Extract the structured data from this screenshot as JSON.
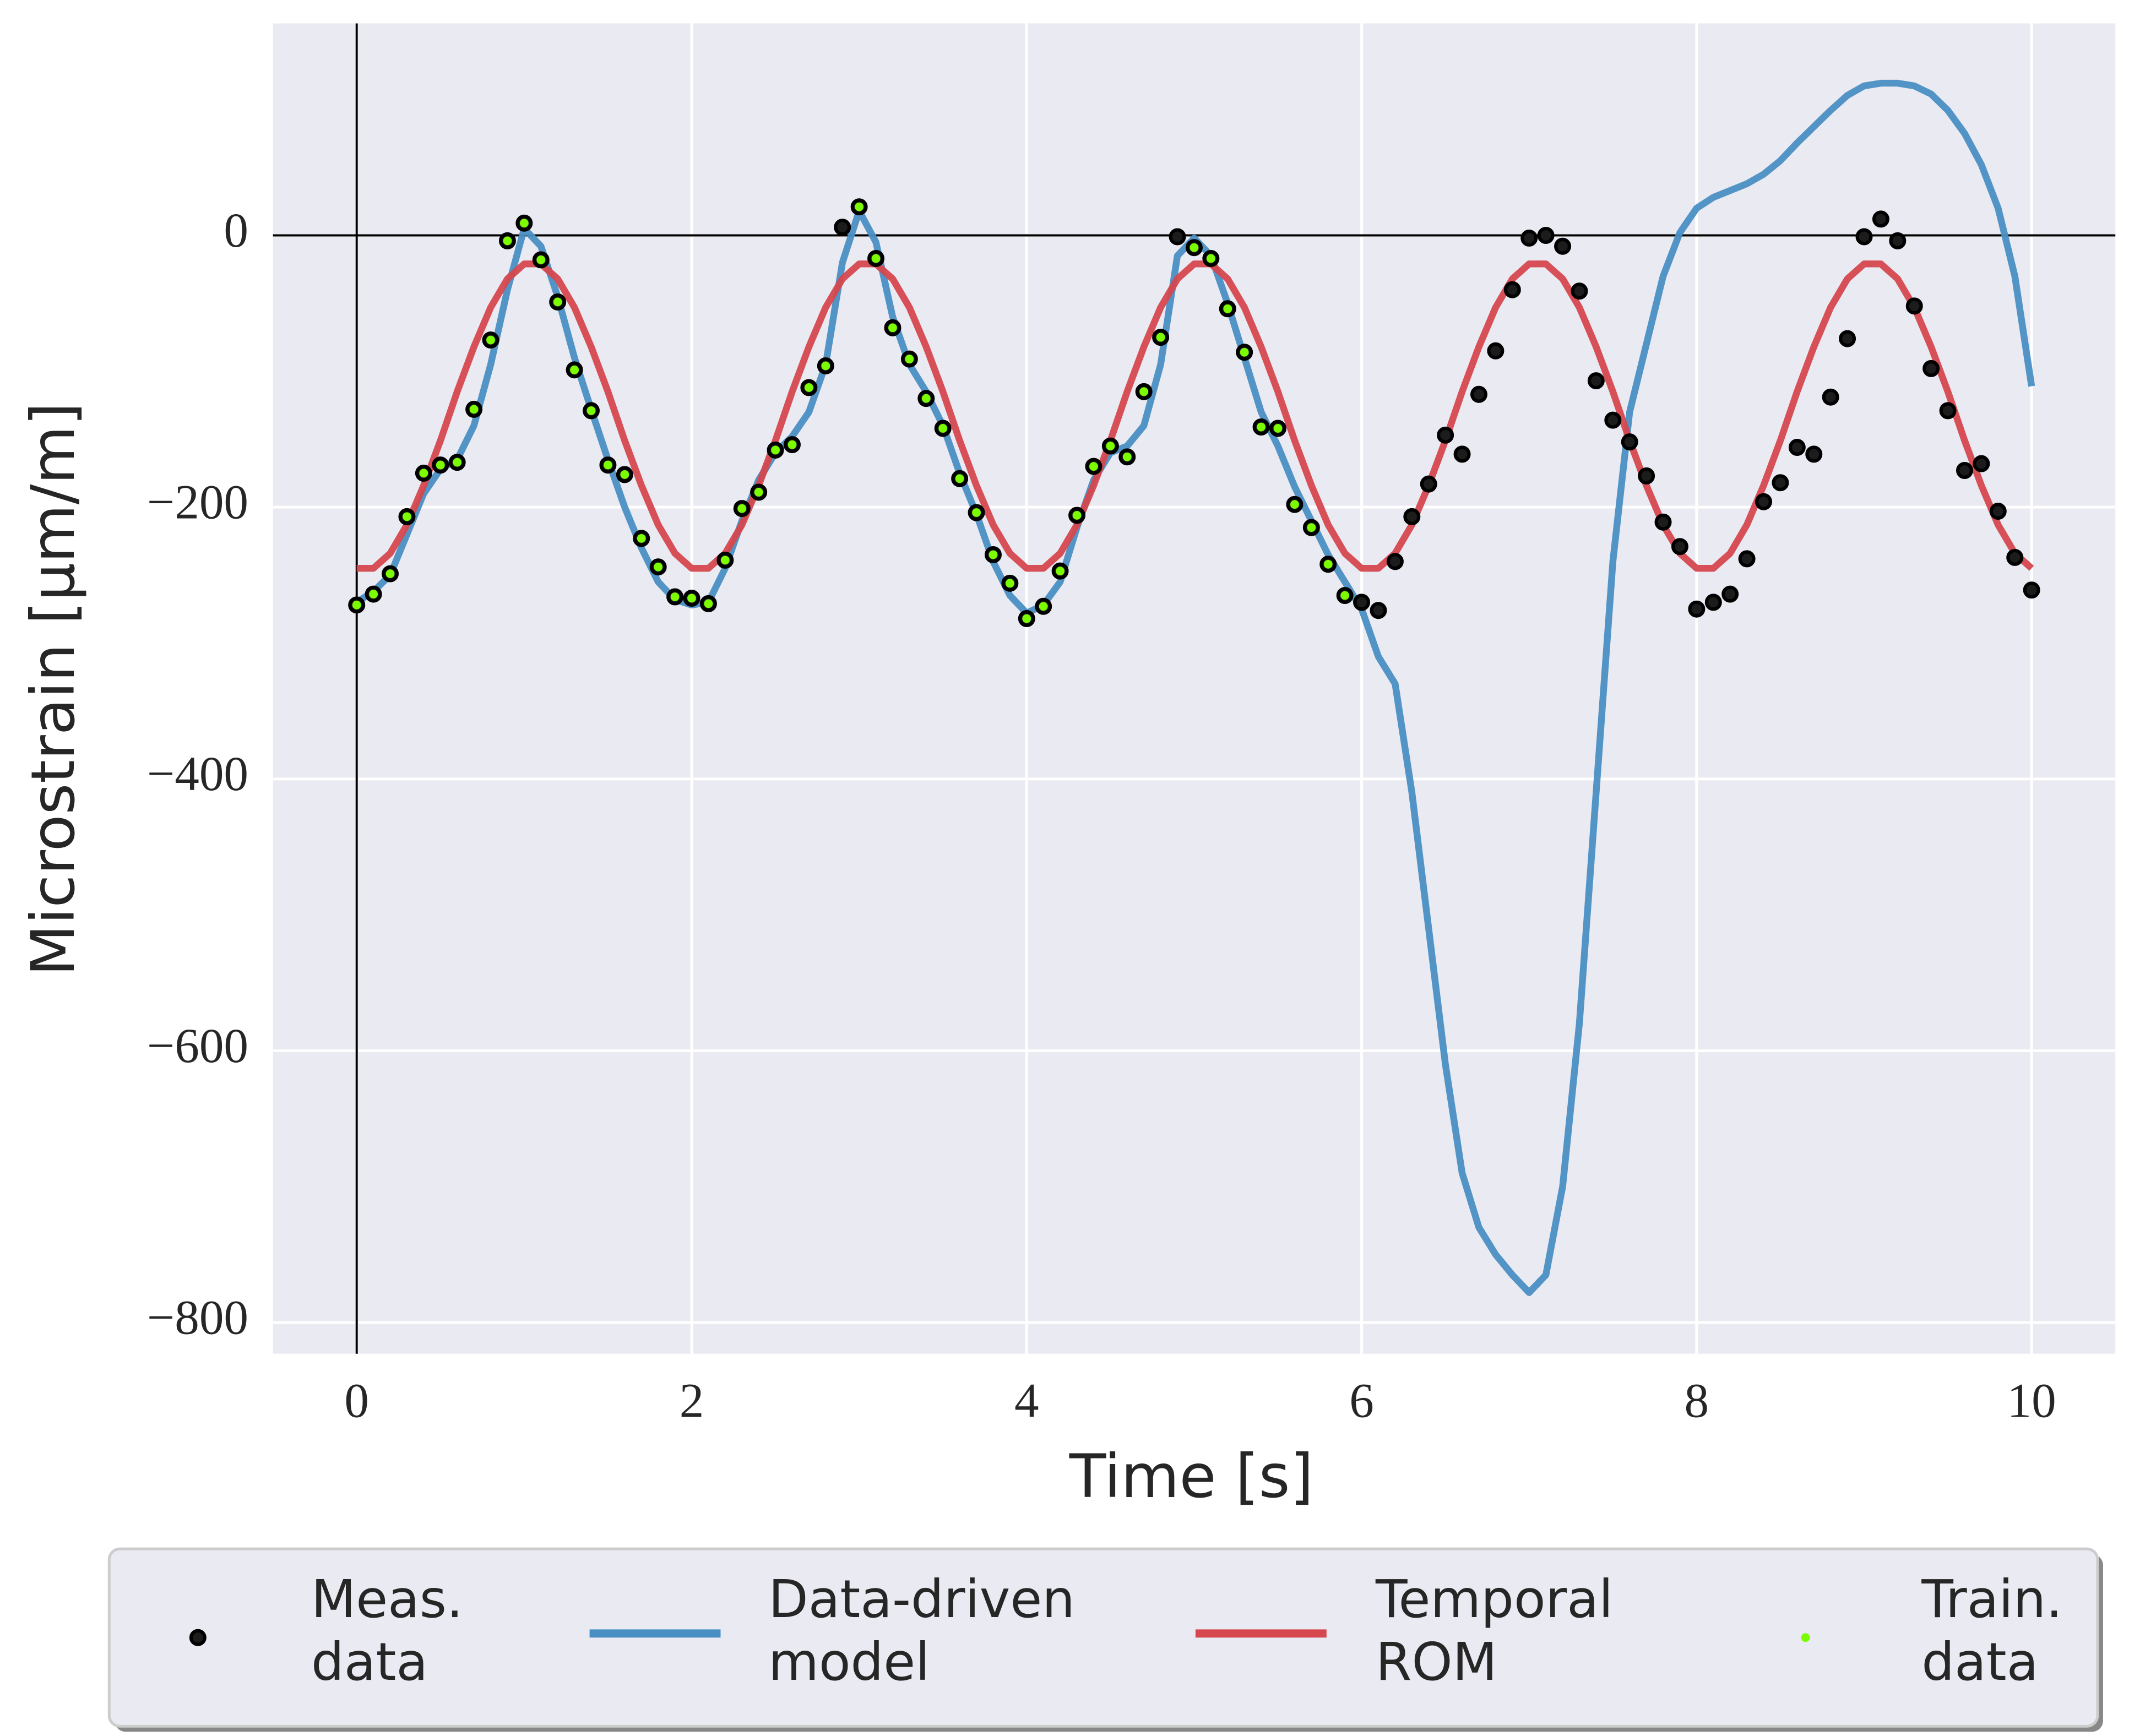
{
  "chart_data": {
    "type": "line",
    "xlabel": "Time [s]",
    "ylabel": "Microstrain [μm/m]",
    "x": [
      0,
      0.1,
      0.2,
      0.3,
      0.4,
      0.5,
      0.6,
      0.7,
      0.8,
      0.9,
      1,
      1.1,
      1.2,
      1.3,
      1.4,
      1.5,
      1.6,
      1.7,
      1.8,
      1.9,
      2,
      2.1,
      2.2,
      2.3,
      2.4,
      2.5,
      2.6,
      2.7,
      2.8,
      2.9,
      3,
      3.1,
      3.2,
      3.3,
      3.4,
      3.5,
      3.6,
      3.7,
      3.8,
      3.9,
      4,
      4.1,
      4.2,
      4.3,
      4.4,
      4.5,
      4.6,
      4.7,
      4.8,
      4.9,
      5,
      5.1,
      5.2,
      5.3,
      5.4,
      5.5,
      5.6,
      5.7,
      5.8,
      5.9,
      6,
      6.1,
      6.2,
      6.3,
      6.4,
      6.5,
      6.6,
      6.7,
      6.8,
      6.9,
      7,
      7.1,
      7.2,
      7.3,
      7.4,
      7.5,
      7.6,
      7.7,
      7.8,
      7.9,
      8,
      8.1,
      8.2,
      8.3,
      8.4,
      8.5,
      8.6,
      8.7,
      8.8,
      8.9,
      9,
      9.1,
      9.2,
      9.3,
      9.4,
      9.5,
      9.6,
      9.7,
      9.8,
      9.9,
      10
    ],
    "series": [
      {
        "name": "Meas. data",
        "type": "scatter",
        "color": "#1c1c1c",
        "values": [
          -272,
          -264,
          -249,
          -207,
          -175,
          -169,
          -167,
          -128,
          -77,
          -4,
          9,
          -18,
          -49,
          -99,
          -129,
          -169,
          -176,
          -223,
          -244,
          -266,
          -267,
          -271,
          -239,
          -201,
          -189,
          -158,
          -154,
          -112,
          -96,
          6,
          21,
          -17,
          -68,
          -91,
          -120,
          -142,
          -179,
          -204,
          -235,
          -256,
          -282,
          -273,
          -247,
          -206,
          -170,
          -155,
          -163,
          -115,
          -75,
          -1,
          -9,
          -17,
          -54,
          -86,
          -141,
          -142,
          -198,
          -215,
          -242,
          -265,
          -270,
          -276,
          -240,
          -207,
          -183,
          -147,
          -161,
          -117,
          -85,
          -40,
          -2,
          0,
          -8,
          -41,
          -107,
          -136,
          -152,
          -177,
          -211,
          -229,
          -275,
          -270,
          -264,
          -238,
          -196,
          -182,
          -156,
          -161,
          -119,
          -76,
          -1,
          12,
          -4,
          -52,
          -98,
          -129,
          -173,
          -168,
          -203,
          -237,
          -261
        ]
      },
      {
        "name": "Data-driven model",
        "type": "line",
        "color": "#4a8fc3",
        "values": [
          -270,
          -262,
          -250,
          -220,
          -190,
          -172,
          -165,
          -140,
          -95,
          -40,
          5,
          -8,
          -45,
          -90,
          -128,
          -165,
          -200,
          -230,
          -255,
          -268,
          -272,
          -270,
          -245,
          -210,
          -180,
          -160,
          -148,
          -130,
          -95,
          -20,
          18,
          -5,
          -60,
          -95,
          -115,
          -140,
          -175,
          -205,
          -240,
          -265,
          -278,
          -272,
          -255,
          -215,
          -180,
          -160,
          -155,
          -140,
          -95,
          -15,
          -2,
          -15,
          -50,
          -90,
          -130,
          -155,
          -185,
          -210,
          -235,
          -255,
          -275,
          -310,
          -330,
          -410,
          -510,
          -610,
          -690,
          -730,
          -750,
          -765,
          -778,
          -765,
          -700,
          -580,
          -410,
          -240,
          -130,
          -80,
          -30,
          2,
          20,
          28,
          33,
          38,
          45,
          55,
          68,
          80,
          92,
          103,
          110,
          112,
          112,
          110,
          104,
          92,
          75,
          52,
          20,
          -30,
          -111
        ]
      },
      {
        "name": "Temporal ROM",
        "type": "line",
        "color": "#d6474e",
        "values": [
          -245,
          -245,
          -234,
          -213,
          -184,
          -151,
          -115,
          -82,
          -53,
          -32,
          -21,
          -21,
          -32,
          -53,
          -82,
          -115,
          -151,
          -184,
          -213,
          -234,
          -245,
          -245,
          -234,
          -213,
          -184,
          -151,
          -115,
          -82,
          -53,
          -32,
          -21,
          -21,
          -32,
          -53,
          -82,
          -115,
          -151,
          -184,
          -213,
          -234,
          -245,
          -245,
          -234,
          -213,
          -184,
          -151,
          -115,
          -82,
          -53,
          -32,
          -21,
          -21,
          -32,
          -53,
          -82,
          -115,
          -151,
          -184,
          -213,
          -234,
          -245,
          -245,
          -234,
          -213,
          -184,
          -151,
          -115,
          -82,
          -53,
          -32,
          -21,
          -21,
          -32,
          -53,
          -82,
          -115,
          -151,
          -184,
          -213,
          -234,
          -245,
          -245,
          -234,
          -213,
          -184,
          -151,
          -115,
          -82,
          -53,
          -32,
          -21,
          -21,
          -32,
          -53,
          -82,
          -115,
          -151,
          -184,
          -213,
          -234,
          -245
        ]
      },
      {
        "name": "Train. data",
        "type": "scatter",
        "color": "#7cfc00",
        "values": [
          -272,
          -264,
          -249,
          -207,
          -175,
          -169,
          -167,
          -128,
          -77,
          -4,
          9,
          -18,
          -49,
          -99,
          -129,
          -169,
          -176,
          -223,
          -244,
          -266,
          -267,
          -271,
          -239,
          -201,
          -189,
          -158,
          -154,
          -112,
          -96,
          null,
          21,
          -17,
          -68,
          -91,
          -120,
          -142,
          -179,
          -204,
          -235,
          -256,
          -282,
          -273,
          -247,
          -206,
          -170,
          -155,
          -163,
          -115,
          -75,
          null,
          -9,
          -17,
          -54,
          -86,
          -141,
          -142,
          -198,
          -215,
          -242,
          -265,
          null,
          null,
          null,
          null,
          null,
          null,
          null,
          null,
          null,
          null,
          null,
          null,
          null,
          null,
          null,
          null,
          null,
          null,
          null,
          null,
          null,
          null,
          null,
          null,
          null,
          null,
          null,
          null,
          null,
          null,
          null,
          null,
          null,
          null,
          null,
          null,
          null,
          null,
          null,
          null,
          null
        ]
      }
    ],
    "xlim": [
      -0.5,
      10.5
    ],
    "ylim": [
      -823,
      156
    ],
    "xticks": [
      0,
      2,
      4,
      6,
      8,
      10
    ],
    "yticks": [
      {
        "value": -800,
        "label": "−800"
      },
      {
        "value": -600,
        "label": "−600"
      },
      {
        "value": -400,
        "label": "−400"
      },
      {
        "value": -200,
        "label": "−200"
      },
      0
    ],
    "hlines": [
      0
    ],
    "vlines": [
      0
    ],
    "grid": true,
    "legend": "lower center outside"
  }
}
